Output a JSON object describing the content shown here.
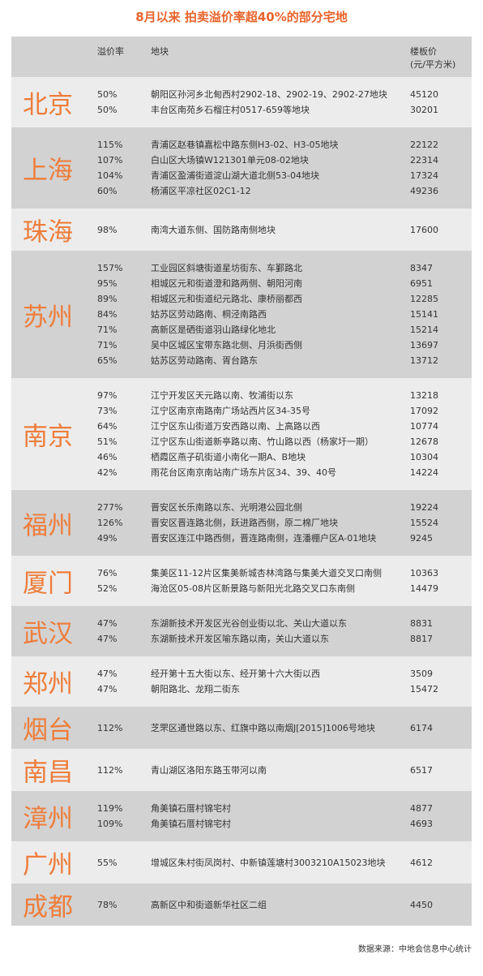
{
  "header": {
    "title": "8月以来 拍卖溢价率超40%的部分宅地",
    "premium": "溢价率",
    "plot": "地块",
    "price": "楼板价",
    "price_unit": "(元/平方米)"
  },
  "cities": [
    {
      "name": "北京",
      "rows": [
        [
          "50%",
          "朝阳区孙河乡北甸西村2902-18、2902-19、2902-27地块",
          45120
        ],
        [
          "50%",
          "丰台区南苑乡石榴庄村0517-659等地块",
          30201
        ]
      ]
    },
    {
      "name": "上海",
      "rows": [
        [
          "115%",
          "青浦区赵巷镇嘉松中路东侧H3-02、H3-05地块",
          22122
        ],
        [
          "107%",
          "白山区大场镇W121301单元08-02地块",
          22314
        ],
        [
          "104%",
          "青浦区盈浦街道淀山湖大道北侧53-04地块",
          17324
        ],
        [
          "60%",
          "杨浦区平凉社区02C1-12",
          49236
        ]
      ]
    },
    {
      "name": "珠海",
      "rows": [
        [
          "98%",
          "南湾大道东侧、国防路南侧地块",
          17600
        ]
      ]
    },
    {
      "name": "苏州",
      "rows": [
        [
          "157%",
          "工业园区斜塘街道星坊街东、车鄞路北",
          8347
        ],
        [
          "95%",
          "相城区元和街道澄和路两侧、朝阳河南",
          6951
        ],
        [
          "89%",
          "相城区元和街道纪元路北、康桥丽都西",
          12285
        ],
        [
          "84%",
          "姑苏区劳动路南、桐泾南路西",
          15141
        ],
        [
          "71%",
          "高新区是硒街道羽山路绿化地北",
          15214
        ],
        [
          "71%",
          "吴中区城区宝带东路北侧、月浜街西侧",
          13697
        ],
        [
          "65%",
          "姑苏区劳动路南、胥台路东",
          13712
        ]
      ]
    },
    {
      "name": "南京",
      "rows": [
        [
          "97%",
          "江宁开发区天元路以南、牧浦街以东",
          13218
        ],
        [
          "73%",
          "江宁区南京南路南广场站西片区34-35号",
          17092
        ],
        [
          "64%",
          "江宁区东山街道万安西路以南、上高路以西",
          10774
        ],
        [
          "51%",
          "江宁区东山街道新亭路以南、竹山路以西（杨家圩一期）",
          12678
        ],
        [
          "46%",
          "栖霞区燕子矶街道小南化一期A、B地块",
          10304
        ],
        [
          "42%",
          "雨花台区南京南站南广场东片区34、39、40号",
          14224
        ]
      ]
    },
    {
      "name": "福州",
      "rows": [
        [
          "277%",
          "晋安区长乐南路以东、光明港公园北侧",
          19224
        ],
        [
          "126%",
          "晋安区晋连路北侧，跃进路西侧，原二棉厂地块",
          15524
        ],
        [
          "49%",
          "晋安区连江中路西侧，晋连路南侧，连潘棚户区A-01地块",
          9245
        ]
      ]
    },
    {
      "name": "厦门",
      "rows": [
        [
          "76%",
          "集美区11-12片区集美新城杏林湾路与集美大道交叉口南侧",
          10363
        ],
        [
          "52%",
          "海沧区05-08片区新景路与新阳光北路交叉口东南侧",
          14479
        ]
      ]
    },
    {
      "name": "武汉",
      "rows": [
        [
          "47%",
          "东湖新技术开发区光谷创业街以北、关山大道以东",
          8831
        ],
        [
          "47%",
          "东湖新技术开发区喻东路以南，关山大道以东",
          8817
        ]
      ]
    },
    {
      "name": "郑州",
      "rows": [
        [
          "47%",
          "经开第十五大街以东、经开第十六大街以西",
          3509
        ],
        [
          "47%",
          "朝阳路北、龙翔二街东",
          15472
        ]
      ]
    },
    {
      "name": "烟台",
      "rows": [
        [
          "112%",
          "芝罘区通世路以东、红旗中路以南烟J[2015]1006号地块",
          6174
        ]
      ]
    },
    {
      "name": "南昌",
      "rows": [
        [
          "112%",
          "青山湖区洛阳东路玉带河以南",
          6517
        ]
      ]
    },
    {
      "name": "漳州",
      "rows": [
        [
          "119%",
          "角美镇石厝村锦宅村",
          4877
        ],
        [
          "109%",
          "角美镇石厝村锦宅村",
          4693
        ]
      ]
    },
    {
      "name": "广州",
      "rows": [
        [
          "55%",
          "增城区朱村街凤岗村、中新镇莲塘村3003210A15023地块",
          4612
        ]
      ]
    },
    {
      "name": "成都",
      "rows": [
        [
          "78%",
          "高新区中和街道新华社区二组",
          4450
        ]
      ]
    }
  ],
  "source": "数据来源：中地会信息中心统计"
}
